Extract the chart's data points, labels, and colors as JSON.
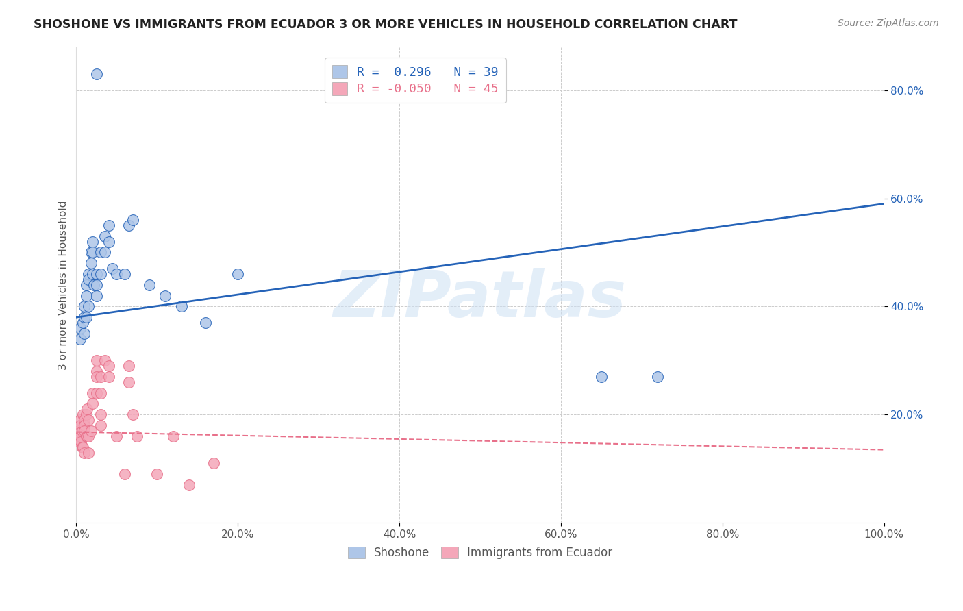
{
  "title": "SHOSHONE VS IMMIGRANTS FROM ECUADOR 3 OR MORE VEHICLES IN HOUSEHOLD CORRELATION CHART",
  "source": "Source: ZipAtlas.com",
  "ylabel": "3 or more Vehicles in Household",
  "legend_label1": "Shoshone",
  "legend_label2": "Immigrants from Ecuador",
  "R1": 0.296,
  "N1": 39,
  "R2": -0.05,
  "N2": 45,
  "shoshone_x": [
    0.005,
    0.005,
    0.008,
    0.01,
    0.01,
    0.01,
    0.012,
    0.012,
    0.012,
    0.015,
    0.015,
    0.015,
    0.018,
    0.018,
    0.02,
    0.02,
    0.02,
    0.022,
    0.025,
    0.025,
    0.025,
    0.03,
    0.03,
    0.035,
    0.035,
    0.04,
    0.04,
    0.045,
    0.05,
    0.06,
    0.065,
    0.07,
    0.09,
    0.11,
    0.13,
    0.16,
    0.2,
    0.65,
    0.72
  ],
  "shoshone_y": [
    0.36,
    0.34,
    0.37,
    0.4,
    0.38,
    0.35,
    0.44,
    0.42,
    0.38,
    0.46,
    0.45,
    0.4,
    0.5,
    0.48,
    0.52,
    0.5,
    0.46,
    0.44,
    0.46,
    0.44,
    0.42,
    0.5,
    0.46,
    0.53,
    0.5,
    0.55,
    0.52,
    0.47,
    0.46,
    0.46,
    0.55,
    0.56,
    0.44,
    0.42,
    0.4,
    0.37,
    0.46,
    0.27,
    0.27
  ],
  "ecuador_x": [
    0.003,
    0.003,
    0.005,
    0.005,
    0.005,
    0.006,
    0.007,
    0.007,
    0.008,
    0.008,
    0.01,
    0.01,
    0.01,
    0.01,
    0.012,
    0.012,
    0.013,
    0.013,
    0.015,
    0.015,
    0.015,
    0.018,
    0.02,
    0.02,
    0.025,
    0.025,
    0.025,
    0.025,
    0.03,
    0.03,
    0.03,
    0.03,
    0.035,
    0.04,
    0.04,
    0.05,
    0.06,
    0.065,
    0.065,
    0.07,
    0.075,
    0.1,
    0.12,
    0.14,
    0.17
  ],
  "ecuador_y": [
    0.17,
    0.15,
    0.19,
    0.18,
    0.16,
    0.15,
    0.17,
    0.14,
    0.2,
    0.14,
    0.19,
    0.18,
    0.17,
    0.13,
    0.2,
    0.16,
    0.21,
    0.16,
    0.19,
    0.16,
    0.13,
    0.17,
    0.24,
    0.22,
    0.3,
    0.28,
    0.27,
    0.24,
    0.27,
    0.24,
    0.2,
    0.18,
    0.3,
    0.29,
    0.27,
    0.16,
    0.09,
    0.29,
    0.26,
    0.2,
    0.16,
    0.09,
    0.16,
    0.07,
    0.11
  ],
  "shoshone_outlier_x": [
    0.025
  ],
  "shoshone_outlier_y": [
    0.83
  ],
  "shoshone_color": "#aec6e8",
  "ecuador_color": "#f4a7b9",
  "shoshone_line_color": "#2563b8",
  "ecuador_line_color": "#e8708a",
  "background_color": "#ffffff",
  "grid_color": "#cccccc",
  "title_color": "#222222",
  "watermark": "ZIPatlas",
  "xlim": [
    0,
    1.0
  ],
  "ylim_min": 0,
  "ylim_max": 0.88,
  "blue_line_x0": 0.0,
  "blue_line_y0": 0.38,
  "blue_line_x1": 1.0,
  "blue_line_y1": 0.59,
  "pink_line_x0": 0.0,
  "pink_line_y0": 0.168,
  "pink_line_x1": 1.0,
  "pink_line_y1": 0.135
}
